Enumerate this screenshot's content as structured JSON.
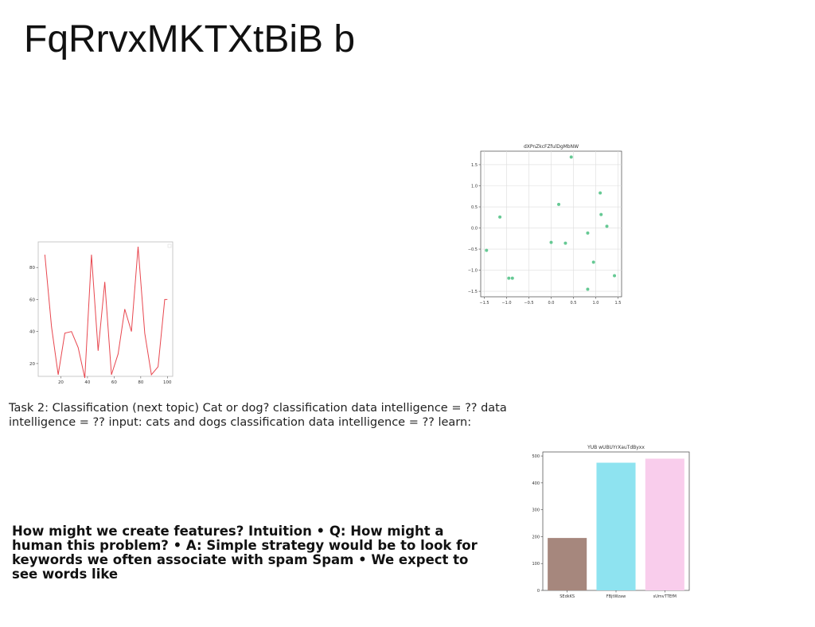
{
  "slide": {
    "title": "FqRrvxMKTXtBiB b",
    "task_text": "Task 2: Classification (next topic) Cat or dog? classification data intelligence = ?? data intelligence = ?? input: cats and dogs classification data intelligence = ?? learn:",
    "features_text": "How might we create features? Intuition • Q: How might a human this problem? • A: Simple strategy would be to look for keywords we often associate with spam Spam • We expect to see words like"
  },
  "chart_data": [
    {
      "type": "line",
      "title": "",
      "x": [
        8,
        13,
        18,
        23,
        28,
        33,
        38,
        43,
        48,
        53,
        58,
        63,
        68,
        73,
        78,
        83,
        88,
        93,
        98,
        100
      ],
      "series": [
        {
          "values": [
            88,
            43,
            13,
            39,
            40,
            30,
            11,
            88,
            28,
            71,
            13,
            26,
            54,
            40,
            93,
            39,
            13,
            18,
            60,
            60
          ],
          "color": "#e8474f"
        }
      ],
      "xlim": [
        3,
        104
      ],
      "ylim": [
        12,
        96
      ],
      "xticks": [
        20,
        40,
        60,
        80,
        100
      ],
      "yticks": [
        20,
        40,
        60,
        80
      ],
      "grid": false,
      "legend": "top-right"
    },
    {
      "type": "scatter",
      "title": "dXPnZkcFZfulDgMbNW",
      "x": [
        -1.45,
        -1.15,
        -0.95,
        -0.87,
        0.0,
        0.17,
        0.32,
        0.45,
        0.82,
        0.82,
        0.95,
        1.1,
        1.12,
        1.25,
        1.42
      ],
      "y": [
        -0.53,
        0.26,
        -1.19,
        -1.19,
        -0.34,
        0.56,
        -0.36,
        1.68,
        -1.45,
        -0.12,
        -0.81,
        0.83,
        0.32,
        0.04,
        -1.13
      ],
      "color": "#66c994",
      "xlim": [
        -1.58,
        1.58
      ],
      "ylim": [
        -1.63,
        1.82
      ],
      "xticks": [
        "-1.5",
        "-1.0",
        "-0.5",
        "0.0",
        "0.5",
        "1.0",
        "1.5"
      ],
      "yticks": [
        "1.5",
        "1.0",
        "0.5",
        "0.0",
        "-0.5",
        "-1.0",
        "-1.5"
      ],
      "grid": true
    },
    {
      "type": "bar",
      "title": "YUB wUBUYrXauTdByxx",
      "categories": [
        "SEdkKS",
        "FBjtWzaw",
        "sUmvTTEfM"
      ],
      "values": [
        195,
        475,
        490
      ],
      "colors": [
        "#a6877d",
        "#8ee3f0",
        "#f9cdec"
      ],
      "ylim": [
        0,
        515
      ],
      "yticks": [
        0,
        100,
        200,
        300,
        400,
        500
      ],
      "grid": false
    }
  ]
}
